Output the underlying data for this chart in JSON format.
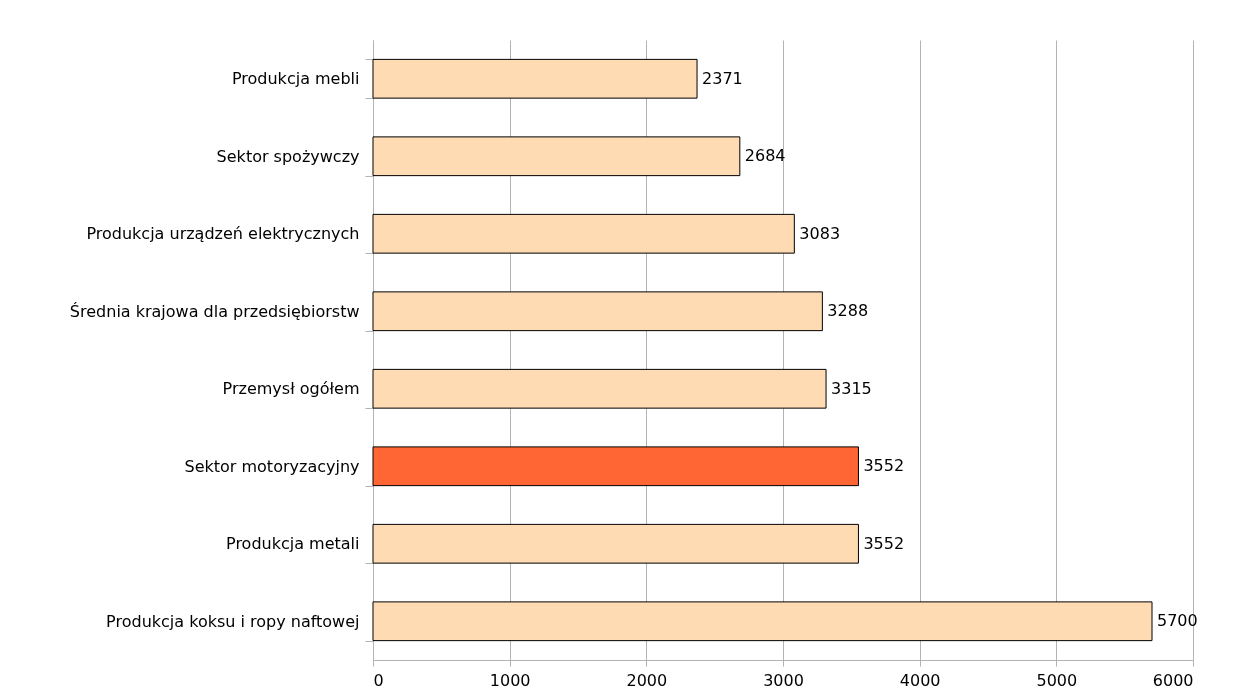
{
  "chart_data": {
    "type": "bar",
    "orientation": "horizontal",
    "categories": [
      "Produkcja mebli",
      "Sektor spożywczy",
      "Produkcja urządzeń elektrycznych",
      "Średnia krajowa dla przedsiębiorstw",
      "Przemysł ogółem",
      "Sektor motoryzacyjny",
      "Produkcja metali",
      "Produkcja koksu i ropy naftowej"
    ],
    "values": [
      2371,
      2684,
      3083,
      3288,
      3315,
      3552,
      3552,
      5700
    ],
    "colors": [
      "#ffdbb3",
      "#ffdbb3",
      "#ffdbb3",
      "#ffdbb3",
      "#ffdbb3",
      "#ff6633",
      "#ffdbb3",
      "#ffdbb3"
    ],
    "xlim": [
      0,
      6000
    ],
    "xticks": [
      0,
      1000,
      2000,
      3000,
      4000,
      5000,
      6000
    ],
    "grid": "x",
    "data_labels": true,
    "legend": false
  }
}
